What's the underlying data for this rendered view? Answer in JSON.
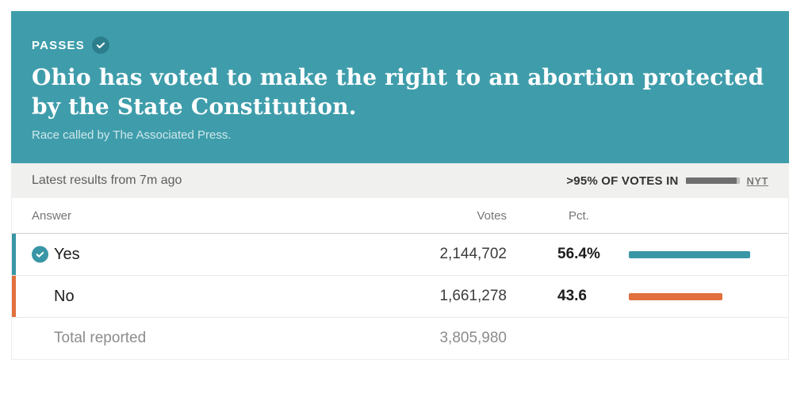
{
  "colors": {
    "hero_teal": "#3f9dab",
    "badge_teal_dark": "#2c7e8c",
    "yes_teal": "#3996a5",
    "no_orange": "#e1703d"
  },
  "header": {
    "status_label": "PASSES",
    "status_icon": "check-icon",
    "headline_lines": [
      "Ohio has voted to make the right to an abortion protected",
      "by the State Constitution."
    ],
    "subtitle": "Race called by The Associated Press."
  },
  "status_bar": {
    "latest_results": "Latest results from 7m ago",
    "votes_in_label": ">95% OF VOTES IN",
    "votes_in_pct": 95,
    "source": "NYT"
  },
  "table": {
    "columns": {
      "answer": "Answer",
      "votes": "Votes",
      "pct": "Pct."
    },
    "rows": [
      {
        "answer": "Yes",
        "votes": "2,144,702",
        "pct": "56.4%",
        "pct_value": 56.4,
        "color": "#3996a5",
        "winner": true
      },
      {
        "answer": "No",
        "votes": "1,661,278",
        "pct": "43.6",
        "pct_value": 43.6,
        "color": "#e1703d",
        "winner": false
      }
    ],
    "total": {
      "label": "Total reported",
      "votes": "3,805,980"
    }
  },
  "chart_data": {
    "type": "table",
    "title": "Ohio has voted to make the right to an abortion protected by the State Constitution.",
    "subtitle": "Race called by The Associated Press.",
    "status": "PASSES",
    "note": "Latest results from 7m ago; >95% of votes in; source NYT",
    "categories": [
      "Yes",
      "No"
    ],
    "series": [
      {
        "name": "Votes",
        "values": [
          2144702,
          1661278
        ]
      },
      {
        "name": "Pct",
        "values": [
          56.4,
          43.6
        ]
      }
    ],
    "total_reported": 3805980,
    "bar_colors": [
      "#3996a5",
      "#e1703d"
    ]
  }
}
